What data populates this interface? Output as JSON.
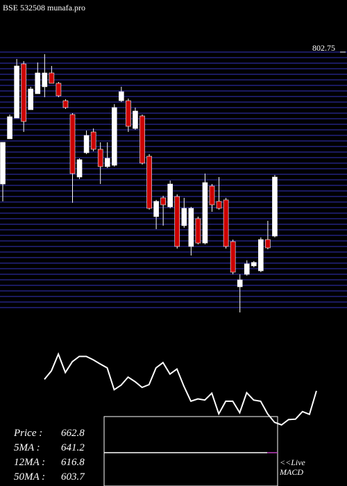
{
  "chart_data": {
    "type": "candlestick",
    "title": "BSE 532508  munafa.pro",
    "open": [
      655.0,
      705.6,
      728.9,
      789.5,
      738.2,
      756.1,
      763.9,
      779.4,
      767.8,
      748.3,
      732.8,
      662.8,
      690.0,
      713.3,
      693.9,
      674.5,
      676.0,
      748.3,
      748.3,
      717.2,
      731.2,
      686.1,
      618.5,
      639.5,
      629.4,
      641.0,
      608.4,
      585.1,
      616.2,
      588.9,
      652.7,
      635.6,
      637.2,
      590.5,
      539.9,
      553.9,
      563.3,
      557.8,
      592.8,
      596.7
    ],
    "high": [
      701.7,
      732.8,
      795.0,
      792.6,
      763.9,
      791.1,
      800.4,
      787.2,
      769.3,
      749.9,
      734.3,
      683.8,
      714.9,
      717.2,
      701.7,
      701.7,
      744.4,
      763.9,
      750.7,
      740.6,
      732.8,
      688.5,
      637.2,
      641.8,
      658.9,
      643.4,
      639.5,
      629.4,
      618.5,
      666.7,
      655.0,
      662.8,
      639.5,
      592.8,
      553.9,
      569.5,
      568.7,
      595.2,
      613.8,
      665.1
    ],
    "low": [
      635.6,
      705.6,
      728.9,
      713.3,
      738.2,
      756.1,
      752.2,
      767.8,
      752.2,
      739.0,
      634.0,
      660.5,
      688.5,
      691.6,
      655.0,
      672.9,
      674.5,
      746.8,
      713.3,
      715.7,
      676.8,
      626.3,
      604.5,
      608.4,
      627.8,
      582.7,
      606.0,
      574.9,
      587.4,
      587.4,
      623.9,
      626.3,
      582.7,
      553.9,
      511.2,
      552.4,
      561.7,
      556.3,
      581.9,
      595.2
    ],
    "close": [
      701.7,
      730.4,
      787.2,
      725.0,
      761.5,
      779.4,
      779.4,
      767.8,
      753.8,
      740.6,
      666.7,
      682.3,
      709.4,
      693.9,
      674.5,
      683.8,
      740.6,
      758.4,
      719.6,
      736.7,
      678.4,
      627.8,
      635.6,
      631.7,
      655.0,
      585.1,
      627.8,
      627.8,
      588.9,
      656.6,
      631.7,
      627.8,
      585.1,
      556.3,
      547.7,
      565.6,
      567.2,
      592.8,
      583.5,
      662.8
    ],
    "up_color": "#ffffff",
    "down_color": "#cc0000",
    "ylim": [
      511.2,
      802.75
    ],
    "yticks": [
      802.75
    ],
    "summary": [
      {
        "label": "Price   :",
        "value": 662.8
      },
      {
        "label": "5MA :",
        "value": 641.2
      },
      {
        "label": "12MA :",
        "value": 616.8
      },
      {
        "label": "50MA :",
        "value": 603.7
      }
    ],
    "macd_label": [
      "<<Live",
      "MACD"
    ]
  }
}
